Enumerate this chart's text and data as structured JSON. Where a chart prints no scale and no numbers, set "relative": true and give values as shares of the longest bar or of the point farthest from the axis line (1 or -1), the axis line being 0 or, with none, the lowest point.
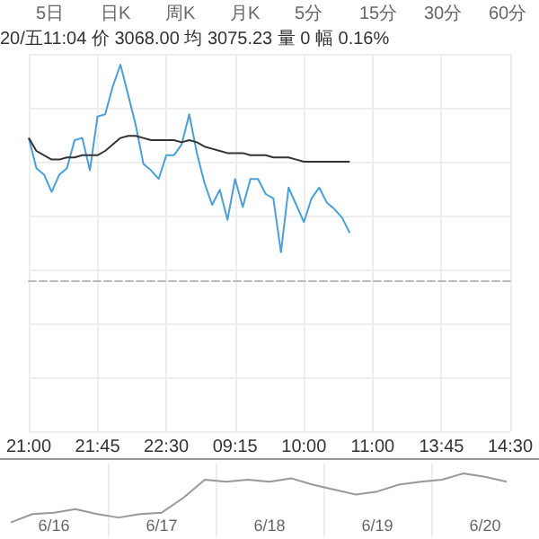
{
  "chart_data": [
    {
      "type": "line",
      "subtitle": "20/五11:04 价 3068.00 均 3075.23 量 0 幅 0.16%",
      "annotations": [
        "5日",
        "日K",
        "周K",
        "月K",
        "5分",
        "15分",
        "30分",
        "60分"
      ],
      "relative": true,
      "grid": true,
      "marker": "none",
      "categories": [
        "21:00",
        null,
        null,
        null,
        null,
        null,
        null,
        null,
        null,
        "21:45",
        null,
        null,
        null,
        null,
        null,
        null,
        null,
        null,
        "22:30",
        null,
        null,
        null,
        null,
        null,
        null,
        null,
        null,
        "09:15",
        null,
        null,
        null,
        null,
        null,
        null,
        null,
        null,
        "10:00",
        null,
        null,
        null,
        null,
        null,
        null,
        null,
        null,
        "11:00",
        null,
        null,
        null,
        null,
        null,
        null,
        null,
        null,
        "13:45",
        null,
        null,
        null,
        null,
        null,
        null,
        null,
        null,
        "14:30"
      ],
      "series": [
        {
          "color": "#4a9fd8",
          "values": [
            0.66,
            0.52,
            0.49,
            0.41,
            0.49,
            0.52,
            0.65,
            0.66,
            0.51,
            0.76,
            0.77,
            0.9,
            1.0,
            0.86,
            0.72,
            0.54,
            0.51,
            0.47,
            0.58,
            0.58,
            0.63,
            0.77,
            0.59,
            0.45,
            0.35,
            0.42,
            0.28,
            0.47,
            0.34,
            0.47,
            0.47,
            0.4,
            0.38,
            0.13,
            0.43,
            0.35,
            0.27,
            0.38,
            0.43,
            0.36,
            0.33,
            0.29,
            0.22,
            null,
            null,
            null,
            null,
            null,
            null,
            null,
            null,
            null,
            null,
            null,
            null,
            null,
            null,
            null,
            null,
            null,
            null,
            null,
            null,
            null
          ]
        },
        {
          "color": "#333333",
          "values": [
            0.66,
            0.6,
            0.58,
            0.56,
            0.56,
            0.57,
            0.57,
            0.58,
            0.58,
            0.58,
            0.6,
            0.63,
            0.66,
            0.67,
            0.67,
            0.66,
            0.65,
            0.65,
            0.65,
            0.65,
            0.64,
            0.65,
            0.64,
            0.62,
            0.61,
            0.6,
            0.59,
            0.59,
            0.59,
            0.58,
            0.58,
            0.58,
            0.57,
            0.57,
            0.57,
            0.56,
            0.55,
            0.55,
            0.55,
            0.55,
            0.55,
            0.55,
            0.55,
            null,
            null,
            null,
            null,
            null,
            null,
            null,
            null,
            null,
            null,
            null,
            null,
            null,
            null,
            null,
            null,
            null,
            null,
            null,
            null,
            null
          ]
        }
      ]
    },
    {
      "type": "line",
      "relative": true,
      "grid": "x",
      "marker": "none",
      "categories": [
        null,
        null,
        "6/16",
        null,
        null,
        null,
        null,
        "6/17",
        null,
        null,
        null,
        null,
        "6/18",
        null,
        null,
        null,
        null,
        "6/19",
        null,
        null,
        null,
        null,
        "6/20",
        null,
        null
      ],
      "series": [
        {
          "color": "#999999",
          "values": [
            0,
            0.17,
            0.2,
            0.27,
            0.17,
            0.1,
            0.17,
            0.2,
            0.5,
            0.87,
            0.83,
            0.87,
            0.83,
            0.9,
            0.77,
            0.67,
            0.57,
            0.63,
            0.77,
            0.83,
            0.87,
            1.0,
            0.93,
            0.83,
            null
          ]
        }
      ]
    }
  ]
}
